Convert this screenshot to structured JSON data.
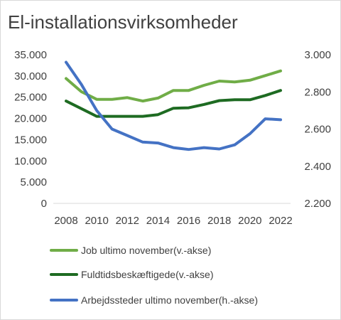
{
  "chart_data": {
    "type": "line",
    "title": "El-installationsvirksomheder",
    "x": [
      "2008",
      "2009",
      "2010",
      "2011",
      "2012",
      "2013",
      "2014",
      "2015",
      "2016",
      "2017",
      "2018",
      "2019",
      "2020",
      "2021",
      "2022"
    ],
    "x_tick_labels": [
      "2008",
      "2010",
      "2012",
      "2014",
      "2016",
      "2018",
      "2020",
      "2022"
    ],
    "y_left": {
      "range": [
        0,
        35000
      ],
      "tick_labels": [
        "0",
        "5.000",
        "10.000",
        "15.000",
        "20.000",
        "25.000",
        "30.000",
        "35.000"
      ],
      "ticks": [
        0,
        5000,
        10000,
        15000,
        20000,
        25000,
        30000,
        35000
      ]
    },
    "y_right": {
      "range": [
        2200,
        3000
      ],
      "tick_labels": [
        "2.200",
        "2.400",
        "2.600",
        "2.800",
        "3.000"
      ],
      "ticks": [
        2200,
        2400,
        2600,
        2800,
        3000
      ]
    },
    "grid": false,
    "legend_position": "bottom",
    "series": [
      {
        "name": "Job ultimo november(v.-akse)",
        "axis": "left",
        "color": "#70ad47",
        "values": [
          29400,
          26300,
          24500,
          24500,
          24900,
          24100,
          24800,
          26600,
          26600,
          27800,
          28800,
          28600,
          29000,
          30100,
          31200
        ]
      },
      {
        "name": "Fuldtidsbeskæftigede(v.-akse)",
        "axis": "left",
        "color": "#1e6b22",
        "values": [
          24100,
          22300,
          20500,
          20500,
          20500,
          20500,
          20900,
          22400,
          22500,
          23300,
          24200,
          24400,
          24400,
          25400,
          26600
        ]
      },
      {
        "name": "Arbejdssteder ultimo november(h.-akse)",
        "axis": "right",
        "color": "#4472c4",
        "values": [
          2960,
          2840,
          2700,
          2600,
          2565,
          2530,
          2525,
          2500,
          2490,
          2500,
          2493,
          2515,
          2575,
          2655,
          2650
        ]
      }
    ]
  }
}
